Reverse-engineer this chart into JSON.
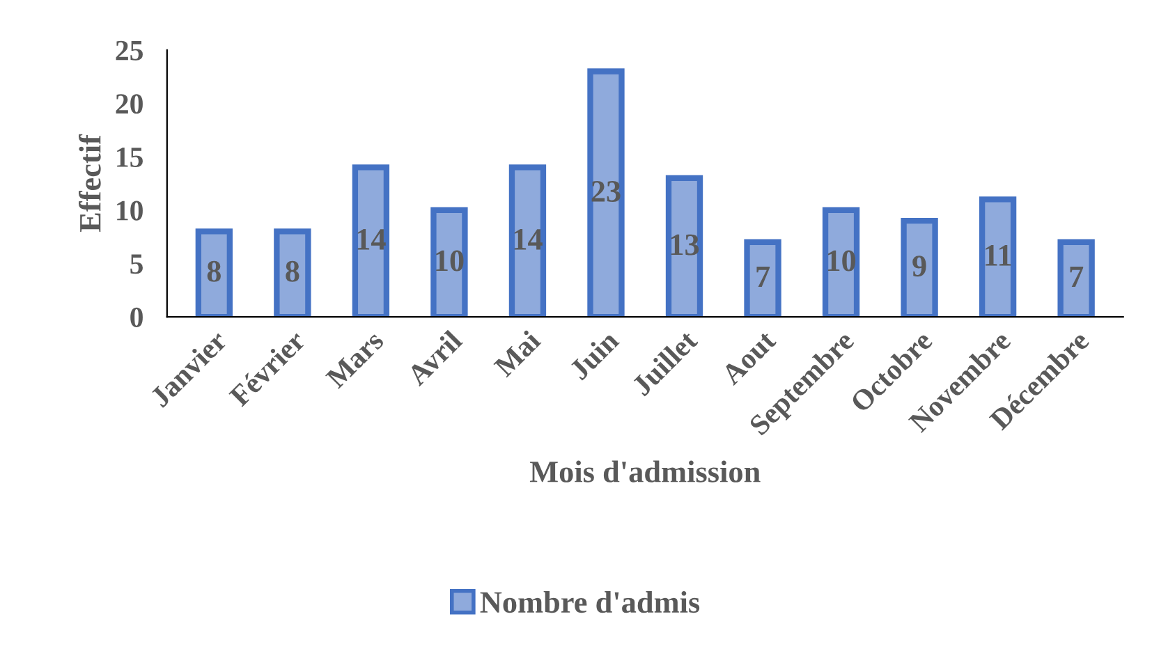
{
  "chart_data": {
    "type": "bar",
    "xlabel": "Mois d'admission",
    "ylabel": "Effectif",
    "categories": [
      "Janvier",
      "Février",
      "Mars",
      "Avril",
      "Mai",
      "Juin",
      "Juillet",
      "Aout",
      "Septembre",
      "Octobre",
      "Novembre",
      "Décembre"
    ],
    "series": [
      {
        "name": "Nombre d'admis",
        "color": "#8faadc",
        "values": [
          8,
          8,
          14,
          10,
          14,
          23,
          13,
          7,
          10,
          9,
          11,
          7
        ]
      }
    ],
    "ylim": [
      0,
      25
    ],
    "yticks": [
      0,
      5,
      10,
      15,
      20,
      25
    ],
    "grid": false,
    "legend": "bottom",
    "data_labels": true
  }
}
